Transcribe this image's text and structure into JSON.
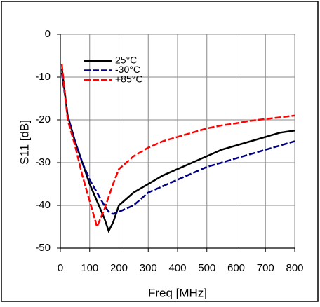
{
  "chart_data": {
    "type": "line",
    "xlabel": "Freq [MHz]",
    "ylabel": "S11 [dB]",
    "x": [
      5,
      25,
      50,
      75,
      100,
      125,
      150,
      165,
      180,
      200,
      250,
      300,
      350,
      400,
      450,
      500,
      550,
      600,
      650,
      700,
      750,
      800
    ],
    "series": [
      {
        "name": "25°C",
        "color": "#000000",
        "style": "solid",
        "values": [
          -8,
          -19,
          -25,
          -30,
          -35,
          -39,
          -43,
          -46,
          -44,
          -40,
          -37,
          -35,
          -33,
          -31.5,
          -30,
          -28.5,
          -27,
          -26,
          -25,
          -24,
          -23,
          -22.5
        ]
      },
      {
        "name": "-30°C",
        "color": "#00007f",
        "style": "dashed",
        "values": [
          -9,
          -19,
          -25,
          -30,
          -34,
          -37,
          -40,
          -41.5,
          -42,
          -41.5,
          -40,
          -37,
          -35.5,
          -34,
          -32.5,
          -31,
          -30,
          -29,
          -28,
          -27,
          -26,
          -25
        ]
      },
      {
        "name": "+85°C",
        "color": "#ff0000",
        "style": "dashed",
        "values": [
          -7,
          -20,
          -26,
          -33,
          -39,
          -45,
          -41,
          -38,
          -35,
          -31.5,
          -28.5,
          -26.5,
          -25,
          -24,
          -23,
          -22,
          -21.3,
          -20.8,
          -20.2,
          -19.8,
          -19.4,
          -19
        ]
      }
    ],
    "xlim": [
      0,
      800
    ],
    "xticks": [
      0,
      100,
      200,
      300,
      400,
      500,
      600,
      700,
      800
    ],
    "ylim": [
      -50,
      0
    ],
    "yticks": [
      -50,
      -40,
      -30,
      -20,
      -10,
      0
    ],
    "grid": true,
    "legend": "upper-left"
  }
}
